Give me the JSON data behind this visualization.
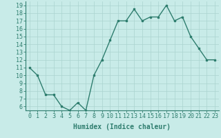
{
  "x": [
    0,
    1,
    2,
    3,
    4,
    5,
    6,
    7,
    8,
    9,
    10,
    11,
    12,
    13,
    14,
    15,
    16,
    17,
    18,
    19,
    20,
    21,
    22,
    23
  ],
  "y": [
    11,
    10,
    7.5,
    7.5,
    6,
    5.5,
    6.5,
    5.5,
    10,
    12,
    14.5,
    17,
    17,
    18.5,
    17,
    17.5,
    17.5,
    19,
    17,
    17.5,
    15,
    13.5,
    12,
    12
  ],
  "line_color": "#2e7d6e",
  "marker": "s",
  "marker_size": 2.0,
  "bg_color": "#c8ebe8",
  "grid_color": "#aad4cf",
  "xlabel": "Humidex (Indice chaleur)",
  "xlim": [
    -0.5,
    23.5
  ],
  "ylim": [
    5.5,
    19.5
  ],
  "xtick_labels": [
    "0",
    "1",
    "2",
    "3",
    "4",
    "5",
    "6",
    "7",
    "8",
    "9",
    "10",
    "11",
    "12",
    "13",
    "14",
    "15",
    "16",
    "17",
    "18",
    "19",
    "20",
    "21",
    "22",
    "23"
  ],
  "ytick_values": [
    6,
    7,
    8,
    9,
    10,
    11,
    12,
    13,
    14,
    15,
    16,
    17,
    18,
    19
  ],
  "tick_color": "#2e7d6e",
  "label_color": "#2e7d6e",
  "fontsize_label": 7,
  "fontsize_tick": 6,
  "linewidth": 1.0
}
